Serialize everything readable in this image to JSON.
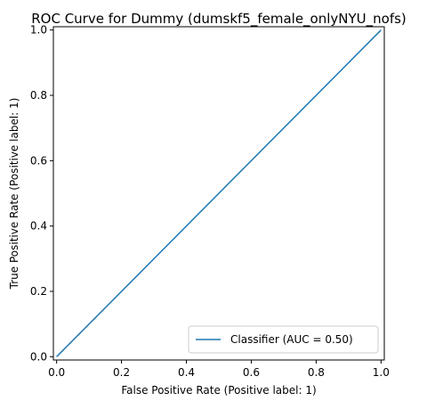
{
  "chart_data": {
    "type": "line",
    "title": "ROC Curve for Dummy (dumskf5_female_onlyNYU_nofs)",
    "xlabel": "False Positive Rate (Positive label: 1)",
    "ylabel": "True Positive Rate (Positive label: 1)",
    "xlim": [
      -0.01,
      1.01
    ],
    "ylim": [
      -0.01,
      1.01
    ],
    "xticks": [
      0.0,
      0.2,
      0.4,
      0.6,
      0.8,
      1.0
    ],
    "xtick_labels": [
      "0.0",
      "0.2",
      "0.4",
      "0.6",
      "0.8",
      "1.0"
    ],
    "yticks": [
      0.0,
      0.2,
      0.4,
      0.6,
      0.8,
      1.0
    ],
    "ytick_labels": [
      "0.0",
      "0.2",
      "0.4",
      "0.6",
      "0.8",
      "1.0"
    ],
    "grid": false,
    "legend_position": "lower-right",
    "series": [
      {
        "name": "Classifier (AUC = 0.50)",
        "color": "#1f77b4",
        "x": [
          0.0,
          1.0
        ],
        "y": [
          0.0,
          1.0
        ]
      }
    ]
  }
}
